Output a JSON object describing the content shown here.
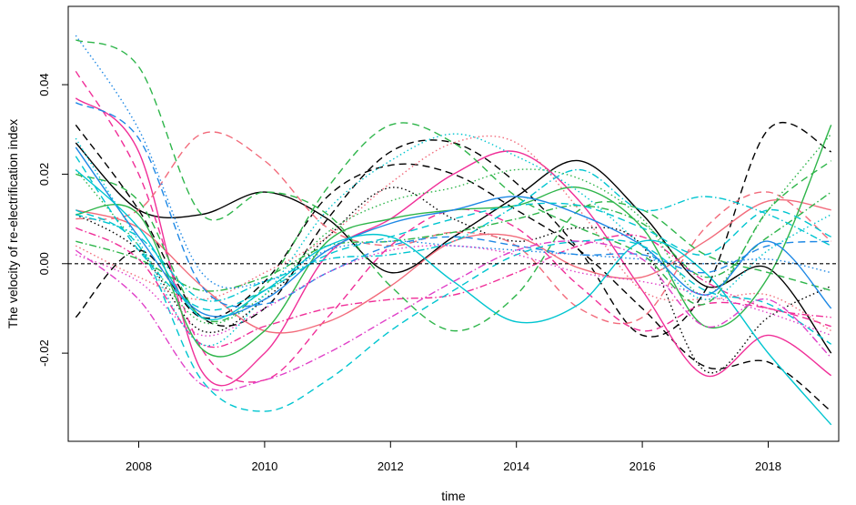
{
  "chart_data": {
    "type": "line",
    "title": "",
    "xlabel": "time",
    "ylabel": "The velocity of re-electrification index",
    "xlim": [
      2006.88,
      2019.12
    ],
    "ylim": [
      -0.0397,
      0.0575
    ],
    "x_ticks": [
      2008,
      2010,
      2012,
      2014,
      2016,
      2018
    ],
    "x_tick_labels": [
      "2008",
      "2010",
      "2012",
      "2014",
      "2016",
      "2018"
    ],
    "y_ticks": [
      -0.02,
      0.0,
      0.02,
      0.04
    ],
    "y_tick_labels": [
      "-0.02",
      "0.00",
      "0.02",
      "0.04"
    ],
    "reference_line": {
      "y": 0.0,
      "style": "dashed",
      "color": "#000000"
    },
    "grid": false,
    "legend": "none",
    "series": [
      {
        "color": "#000000",
        "dash": "solid",
        "x": [
          2007,
          2008,
          2009,
          2010,
          2011,
          2012,
          2013,
          2014,
          2015,
          2016,
          2017,
          2018,
          2019
        ],
        "y": [
          0.027,
          0.012,
          0.011,
          0.016,
          0.01,
          -0.002,
          0.006,
          0.015,
          0.023,
          0.011,
          -0.005,
          -0.001,
          -0.02
        ]
      },
      {
        "color": "#000000",
        "dash": "dashed",
        "x": [
          2007,
          2008,
          2009,
          2010,
          2011,
          2012,
          2013,
          2014,
          2015,
          2016,
          2017,
          2018,
          2019
        ],
        "y": [
          -0.012,
          0.003,
          -0.012,
          -0.004,
          0.015,
          0.022,
          0.02,
          0.012,
          0.003,
          -0.01,
          -0.023,
          -0.022,
          -0.033
        ]
      },
      {
        "color": "#000000",
        "dash": "dashed",
        "x": [
          2007,
          2008,
          2009,
          2010,
          2011,
          2012,
          2013,
          2014,
          2015,
          2016,
          2017,
          2018,
          2019
        ],
        "y": [
          0.031,
          0.012,
          -0.012,
          -0.01,
          0.01,
          0.025,
          0.027,
          0.018,
          0.003,
          -0.016,
          -0.006,
          0.03,
          0.025
        ]
      },
      {
        "color": "#000000",
        "dash": "dotted",
        "x": [
          2007,
          2008,
          2009,
          2010,
          2011,
          2012,
          2013,
          2014,
          2015,
          2016,
          2017,
          2018,
          2019
        ],
        "y": [
          0.011,
          0.003,
          -0.015,
          -0.008,
          0.006,
          0.017,
          0.01,
          0.005,
          0.008,
          0.004,
          -0.024,
          -0.012,
          -0.005
        ]
      },
      {
        "color": "#F02E98",
        "dash": "solid",
        "x": [
          2007,
          2008,
          2009,
          2010,
          2011,
          2012,
          2013,
          2014,
          2015,
          2016,
          2017,
          2018,
          2019
        ],
        "y": [
          0.037,
          0.025,
          -0.024,
          -0.02,
          0.002,
          0.01,
          0.02,
          0.025,
          0.014,
          -0.006,
          -0.025,
          -0.016,
          -0.025
        ]
      },
      {
        "color": "#F02E98",
        "dash": "dashdot",
        "x": [
          2007,
          2008,
          2009,
          2010,
          2011,
          2012,
          2013,
          2014,
          2015,
          2016,
          2017,
          2018,
          2019
        ],
        "y": [
          0.008,
          0.001,
          -0.018,
          -0.014,
          -0.01,
          -0.008,
          -0.007,
          -0.002,
          0.004,
          0.006,
          -0.004,
          -0.01,
          -0.012
        ]
      },
      {
        "color": "#F02E98",
        "dash": "dashed",
        "x": [
          2007,
          2008,
          2009,
          2010,
          2011,
          2012,
          2013,
          2014,
          2015,
          2016,
          2017,
          2018,
          2019
        ],
        "y": [
          0.043,
          0.02,
          -0.019,
          -0.026,
          -0.012,
          0.004,
          0.012,
          0.008,
          -0.005,
          -0.015,
          -0.009,
          -0.01,
          -0.014
        ]
      },
      {
        "color": "#F26B7B",
        "dash": "solid",
        "x": [
          2007,
          2008,
          2009,
          2010,
          2011,
          2012,
          2013,
          2014,
          2015,
          2016,
          2017,
          2018,
          2019
        ],
        "y": [
          0.012,
          0.008,
          -0.005,
          -0.015,
          -0.013,
          -0.005,
          0.005,
          0.006,
          -0.001,
          -0.003,
          0.005,
          0.014,
          0.012
        ]
      },
      {
        "color": "#F26B7B",
        "dash": "dashed",
        "x": [
          2007,
          2008,
          2009,
          2010,
          2011,
          2012,
          2013,
          2014,
          2015,
          2016,
          2017,
          2018,
          2019
        ],
        "y": [
          0.01,
          0.012,
          0.029,
          0.023,
          0.008,
          0.004,
          0.007,
          0.004,
          -0.01,
          -0.012,
          0.008,
          0.016,
          0.005
        ]
      },
      {
        "color": "#F26B7B",
        "dash": "dotted",
        "x": [
          2007,
          2008,
          2009,
          2010,
          2011,
          2012,
          2013,
          2014,
          2015,
          2016,
          2017,
          2018,
          2019
        ],
        "y": [
          0.004,
          -0.003,
          -0.008,
          -0.002,
          0.006,
          0.018,
          0.027,
          0.027,
          0.012,
          -0.006,
          -0.008,
          -0.007,
          -0.015
        ]
      },
      {
        "color": "#2EB54A",
        "dash": "solid",
        "x": [
          2007,
          2008,
          2009,
          2010,
          2011,
          2012,
          2013,
          2014,
          2015,
          2016,
          2017,
          2018,
          2019
        ],
        "y": [
          0.011,
          0.011,
          -0.019,
          -0.015,
          0.005,
          0.01,
          0.012,
          0.013,
          0.017,
          0.008,
          -0.014,
          -0.003,
          0.031
        ]
      },
      {
        "color": "#2EB54A",
        "dash": "dashed",
        "x": [
          2007,
          2008,
          2009,
          2010,
          2011,
          2012,
          2013,
          2014,
          2015,
          2016,
          2017,
          2018,
          2019
        ],
        "y": [
          0.05,
          0.044,
          0.011,
          0.016,
          0.011,
          -0.005,
          -0.015,
          -0.007,
          0.012,
          0.012,
          0.002,
          -0.002,
          -0.006
        ]
      },
      {
        "color": "#2EB54A",
        "dash": "dashed",
        "x": [
          2007,
          2008,
          2009,
          2010,
          2011,
          2012,
          2013,
          2014,
          2015,
          2016,
          2017,
          2018,
          2019
        ],
        "y": [
          0.02,
          0.014,
          -0.012,
          -0.005,
          0.017,
          0.031,
          0.027,
          0.015,
          0.008,
          0.002,
          -0.009,
          0.012,
          0.023
        ]
      },
      {
        "color": "#2EB54A",
        "dash": "dotted",
        "x": [
          2007,
          2008,
          2009,
          2010,
          2011,
          2012,
          2013,
          2014,
          2015,
          2016,
          2017,
          2018,
          2019
        ],
        "y": [
          0.021,
          0.004,
          -0.013,
          -0.007,
          0.007,
          0.014,
          0.017,
          0.021,
          0.019,
          0.01,
          -0.007,
          0.012,
          0.029
        ]
      },
      {
        "color": "#2EB54A",
        "dash": "dashdot",
        "x": [
          2007,
          2008,
          2009,
          2010,
          2011,
          2012,
          2013,
          2014,
          2015,
          2016,
          2017,
          2018,
          2019
        ],
        "y": [
          0.005,
          0.001,
          -0.006,
          -0.003,
          0.004,
          0.005,
          0.007,
          0.01,
          0.013,
          0.009,
          -0.003,
          0.006,
          0.016
        ]
      },
      {
        "color": "#1E88E5",
        "dash": "solid",
        "x": [
          2007,
          2008,
          2009,
          2010,
          2011,
          2012,
          2013,
          2014,
          2015,
          2016,
          2017,
          2018,
          2019
        ],
        "y": [
          0.026,
          0.006,
          -0.011,
          -0.008,
          0.003,
          0.009,
          0.012,
          0.015,
          0.011,
          0.004,
          -0.007,
          0.005,
          -0.01
        ]
      },
      {
        "color": "#1E88E5",
        "dash": "dashed",
        "x": [
          2007,
          2008,
          2009,
          2010,
          2011,
          2012,
          2013,
          2014,
          2015,
          2016,
          2017,
          2018,
          2019
        ],
        "y": [
          0.036,
          0.028,
          -0.005,
          -0.009,
          -0.002,
          0.004,
          0.006,
          0.004,
          0.002,
          0.002,
          -0.002,
          0.004,
          0.005
        ]
      },
      {
        "color": "#1E88E5",
        "dash": "dotted",
        "x": [
          2007,
          2008,
          2009,
          2010,
          2011,
          2012,
          2013,
          2014,
          2015,
          2016,
          2017,
          2018,
          2019
        ],
        "y": [
          0.051,
          0.03,
          -0.002,
          -0.004,
          0.003,
          0.005,
          0.004,
          0.003,
          0.002,
          0.001,
          0.0,
          0.001,
          -0.002
        ]
      },
      {
        "color": "#00C5D0",
        "dash": "solid",
        "x": [
          2007,
          2008,
          2009,
          2010,
          2011,
          2012,
          2013,
          2014,
          2015,
          2016,
          2017,
          2018,
          2019
        ],
        "y": [
          0.021,
          0.008,
          -0.012,
          -0.006,
          0.004,
          0.006,
          -0.004,
          -0.013,
          -0.009,
          0.005,
          -0.002,
          -0.02,
          -0.036
        ]
      },
      {
        "color": "#00C5D0",
        "dash": "dashed",
        "x": [
          2007,
          2008,
          2009,
          2010,
          2011,
          2012,
          2013,
          2014,
          2015,
          2016,
          2017,
          2018,
          2019
        ],
        "y": [
          0.012,
          0.004,
          -0.026,
          -0.033,
          -0.026,
          -0.015,
          -0.006,
          0.002,
          0.005,
          0.004,
          -0.006,
          -0.009,
          -0.018
        ]
      },
      {
        "color": "#00C5D0",
        "dash": "dashdot",
        "x": [
          2007,
          2008,
          2009,
          2010,
          2011,
          2012,
          2013,
          2014,
          2015,
          2016,
          2017,
          2018,
          2019
        ],
        "y": [
          0.011,
          0.006,
          -0.008,
          -0.004,
          0.001,
          0.002,
          0.005,
          0.013,
          0.021,
          0.012,
          0.015,
          0.011,
          0.004
        ]
      },
      {
        "color": "#00C5D0",
        "dash": "dotted",
        "x": [
          2007,
          2008,
          2009,
          2010,
          2011,
          2012,
          2013,
          2014,
          2015,
          2016,
          2017,
          2018,
          2019
        ],
        "y": [
          0.028,
          0.005,
          -0.018,
          -0.007,
          0.012,
          0.023,
          0.029,
          0.024,
          0.016,
          0.004,
          -0.008,
          0.003,
          0.011
        ]
      },
      {
        "color": "#00C5D0",
        "dash": "dashed",
        "x": [
          2007,
          2008,
          2009,
          2010,
          2011,
          2012,
          2013,
          2014,
          2015,
          2016,
          2017,
          2018,
          2019
        ],
        "y": [
          0.024,
          0.003,
          -0.01,
          -0.006,
          0.002,
          0.006,
          0.01,
          0.013,
          0.013,
          0.008,
          0.002,
          0.012,
          0.006
        ]
      },
      {
        "color": "#E040C8",
        "dash": "dashdot",
        "x": [
          2007,
          2008,
          2009,
          2010,
          2011,
          2012,
          2013,
          2014,
          2015,
          2016,
          2017,
          2018,
          2019
        ],
        "y": [
          0.003,
          -0.008,
          -0.027,
          -0.026,
          -0.02,
          -0.012,
          -0.004,
          0.003,
          0.005,
          0.001,
          -0.014,
          -0.008,
          -0.021
        ]
      },
      {
        "color": "#E040C8",
        "dash": "dotted",
        "x": [
          2007,
          2008,
          2009,
          2010,
          2011,
          2012,
          2013,
          2014,
          2015,
          2016,
          2017,
          2018,
          2019
        ],
        "y": [
          0.002,
          -0.004,
          -0.016,
          -0.01,
          -0.002,
          0.003,
          0.004,
          0.002,
          -0.002,
          -0.004,
          -0.007,
          -0.011,
          -0.016
        ]
      }
    ]
  }
}
